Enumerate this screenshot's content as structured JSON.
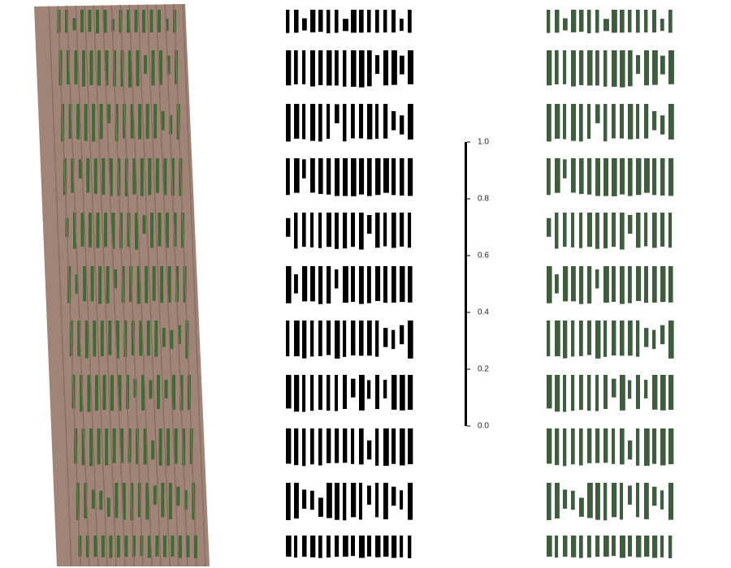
{
  "colorbar": {
    "lim": [
      0,
      1
    ],
    "ticks": [
      {
        "value": 0,
        "label": "0.0"
      },
      0.2,
      0.4,
      0.6,
      0.8,
      {
        "value": 1,
        "label": "1.0"
      }
    ]
  }
}
